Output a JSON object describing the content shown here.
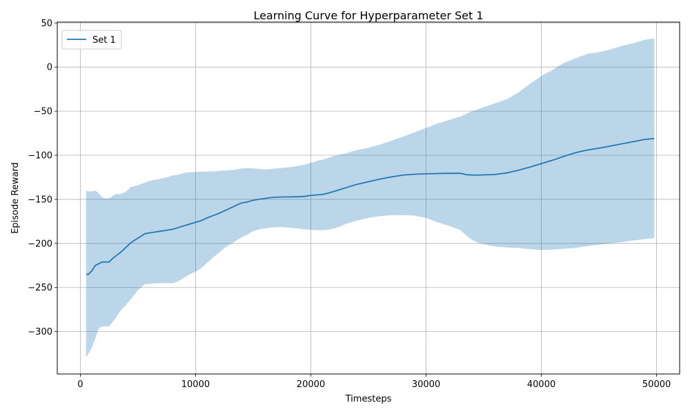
{
  "chart_data": {
    "type": "line",
    "title": "Learning Curve for Hyperparameter Set 1",
    "xlabel": "Timesteps",
    "ylabel": "Episode Reward",
    "xlim": [
      -2000,
      52000
    ],
    "ylim": [
      -348,
      51
    ],
    "xticks": [
      0,
      10000,
      20000,
      30000,
      40000,
      50000
    ],
    "xtick_labels": [
      "0",
      "10000",
      "20000",
      "30000",
      "40000",
      "50000"
    ],
    "yticks": [
      50,
      0,
      -50,
      -100,
      -150,
      -200,
      -250,
      -300
    ],
    "ytick_labels": [
      "50",
      "0",
      "−50",
      "−100",
      "−150",
      "−200",
      "−250",
      "−300"
    ],
    "grid": true,
    "legend_position": "top-left",
    "colors": {
      "line": "#1f77b4",
      "band": "#1f77b4",
      "band_opacity": 0.3,
      "grid": "#b0b0b0"
    },
    "series": [
      {
        "name": "Set 1",
        "x": [
          500,
          700,
          1000,
          1300,
          1600,
          1900,
          2200,
          2500,
          2800,
          3100,
          3500,
          4000,
          4400,
          5000,
          5600,
          6000,
          6500,
          7000,
          7500,
          8000,
          8500,
          9000,
          9500,
          10000,
          10500,
          11000,
          11600,
          12000,
          12500,
          13000,
          13500,
          14000,
          14500,
          15000,
          15500,
          16000,
          16500,
          17000,
          17500,
          18000,
          18500,
          19000,
          19500,
          20000,
          20500,
          21000,
          21500,
          22000,
          22500,
          23000,
          23500,
          24000,
          25000,
          26000,
          27000,
          28000,
          29000,
          30000,
          31000,
          32000,
          33000,
          33500,
          34000,
          34500,
          35000,
          36000,
          37000,
          38000,
          39000,
          40000,
          41000,
          42000,
          43000,
          44000,
          45000,
          46000,
          47000,
          48000,
          49000,
          49800
        ],
        "y": [
          -235,
          -235,
          -231,
          -225,
          -223,
          -221,
          -221,
          -221,
          -217,
          -214,
          -210,
          -204,
          -199,
          -194,
          -189,
          -188,
          -187,
          -186,
          -185,
          -184,
          -182,
          -180,
          -178,
          -176,
          -174,
          -171,
          -168,
          -166,
          -163,
          -160,
          -157,
          -154,
          -153,
          -151,
          -150,
          -149,
          -148,
          -147.5,
          -147.3,
          -147.2,
          -147.1,
          -147,
          -146.5,
          -145.5,
          -145,
          -144.5,
          -143,
          -141,
          -139,
          -137,
          -135,
          -133,
          -130,
          -127,
          -124.5,
          -122.5,
          -121.5,
          -121,
          -120.7,
          -120.5,
          -120.5,
          -122,
          -122.5,
          -122.5,
          -122.3,
          -121.8,
          -120,
          -117,
          -113.5,
          -109.5,
          -105.5,
          -101,
          -97,
          -94,
          -92,
          -89.5,
          -87,
          -84.5,
          -82,
          -81
        ],
        "upper": [
          -140,
          -141,
          -141,
          -140,
          -143,
          -148,
          -149,
          -149,
          -146,
          -144,
          -144,
          -141,
          -136,
          -134,
          -131,
          -129,
          -128,
          -126.5,
          -125,
          -123,
          -122,
          -120,
          -119.3,
          -119,
          -118.7,
          -118.4,
          -118.3,
          -117.8,
          -117.2,
          -116.8,
          -116.3,
          -115,
          -114.5,
          -115,
          -115.5,
          -116,
          -115.7,
          -115,
          -114.5,
          -113.8,
          -112.8,
          -111.8,
          -110.5,
          -108.5,
          -106.5,
          -105,
          -103,
          -101,
          -99.5,
          -98,
          -96,
          -94,
          -91.5,
          -88,
          -83.5,
          -79,
          -74,
          -69,
          -64,
          -60,
          -56,
          -53,
          -50,
          -48,
          -45.5,
          -41,
          -36.5,
          -29,
          -19,
          -10,
          -3,
          5,
          10,
          15,
          17,
          20,
          24,
          27,
          31,
          32.5
        ],
        "lower": [
          -329,
          -325,
          -318,
          -308,
          -296,
          -294,
          -294,
          -294,
          -289,
          -284,
          -276,
          -269,
          -263,
          -253,
          -246,
          -246,
          -245,
          -245,
          -245,
          -245,
          -243,
          -239,
          -235,
          -232,
          -228,
          -222,
          -215,
          -211,
          -205,
          -201,
          -197,
          -193,
          -190,
          -186,
          -184,
          -183,
          -182,
          -181.5,
          -181.5,
          -182,
          -182.5,
          -183,
          -184,
          -184.5,
          -185,
          -185,
          -184.5,
          -183,
          -181,
          -178,
          -176,
          -174,
          -171,
          -169,
          -168,
          -168,
          -168.5,
          -171,
          -176,
          -180,
          -185,
          -191,
          -196,
          -199,
          -201,
          -203.5,
          -204.5,
          -205,
          -206.5,
          -207.5,
          -207,
          -206,
          -205,
          -203,
          -201.5,
          -200,
          -198.5,
          -196.5,
          -195,
          -194
        ]
      }
    ]
  }
}
